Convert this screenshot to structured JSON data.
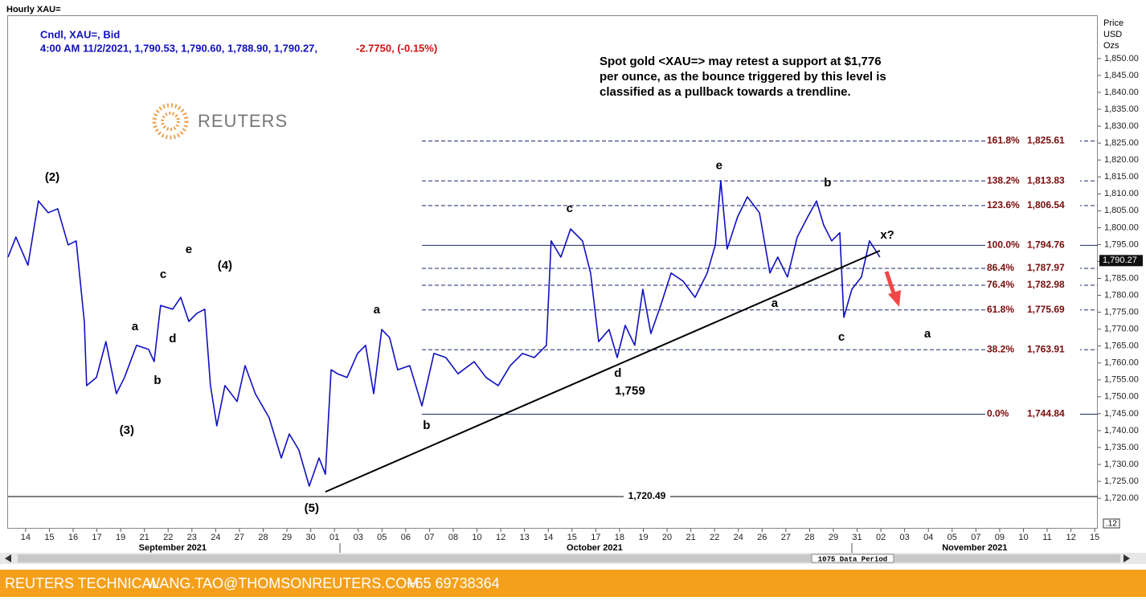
{
  "header": "Hourly XAU=",
  "footer": {
    "name": "REUTERS TECHNICAL",
    "email": "WANG.TAO@THOMSONREUTERS.COM",
    "phone": "+65 69738364"
  },
  "data_period": "1075 Data Period",
  "chart_data": {
    "type": "line",
    "legend_line1": "Cndl, XAU=, Bid",
    "legend_line2": "4:00 AM 11/2/2021, 1,790.53, 1,790.60, 1,788.90, 1,790.27,",
    "legend_change": "-2.7750, (-0.15%)",
    "logo": "REUTERS",
    "annotation": [
      "Spot gold <XAU=> may retest a support at $1,776",
      "per ounce, as the bounce triggered by this level is",
      "classified as a pullback towards a trendline."
    ],
    "y_axis_title": [
      "Price",
      "USD",
      "Ozs"
    ],
    "axis_corner": ".12",
    "color": "#1010c0",
    "xlim": [
      -0.74,
      45.13
    ],
    "ylim": [
      1711.0,
      1862.8
    ],
    "xticks": [
      {
        "value": 0,
        "label": "14"
      },
      {
        "value": 1,
        "label": "15"
      },
      {
        "value": 2,
        "label": "16"
      },
      {
        "value": 3,
        "label": "17"
      },
      {
        "value": 4,
        "label": "19"
      },
      {
        "value": 5,
        "label": "21"
      },
      {
        "value": 6,
        "label": "22"
      },
      {
        "value": 7,
        "label": "23"
      },
      {
        "value": 8,
        "label": "24"
      },
      {
        "value": 9,
        "label": "27"
      },
      {
        "value": 10,
        "label": "28"
      },
      {
        "value": 11,
        "label": "29"
      },
      {
        "value": 12,
        "label": "30"
      },
      {
        "value": 13,
        "label": "01"
      },
      {
        "value": 14,
        "label": "03"
      },
      {
        "value": 15,
        "label": "05"
      },
      {
        "value": 16,
        "label": "06"
      },
      {
        "value": 17,
        "label": "07"
      },
      {
        "value": 18,
        "label": "08"
      },
      {
        "value": 19,
        "label": "10"
      },
      {
        "value": 20,
        "label": "12"
      },
      {
        "value": 21,
        "label": "13"
      },
      {
        "value": 22,
        "label": "14"
      },
      {
        "value": 23,
        "label": "15"
      },
      {
        "value": 24,
        "label": "17"
      },
      {
        "value": 25,
        "label": "18"
      },
      {
        "value": 26,
        "label": "19"
      },
      {
        "value": 27,
        "label": "20"
      },
      {
        "value": 28,
        "label": "21"
      },
      {
        "value": 29,
        "label": "22"
      },
      {
        "value": 30,
        "label": "24"
      },
      {
        "value": 31,
        "label": "26"
      },
      {
        "value": 32,
        "label": "27"
      },
      {
        "value": 33,
        "label": "28"
      },
      {
        "value": 34,
        "label": "29"
      },
      {
        "value": 35,
        "label": "31"
      },
      {
        "value": 36,
        "label": "02"
      },
      {
        "value": 37,
        "label": "03"
      },
      {
        "value": 38,
        "label": "04"
      },
      {
        "value": 39,
        "label": "05"
      },
      {
        "value": 40,
        "label": "07"
      },
      {
        "value": 41,
        "label": "09"
      },
      {
        "value": 42,
        "label": "10"
      },
      {
        "value": 43,
        "label": "11"
      },
      {
        "value": 44,
        "label": "12"
      },
      {
        "value": 45,
        "label": "15"
      }
    ],
    "months": [
      {
        "label": "September 2021",
        "x": 6.19
      },
      {
        "label": "October 2021",
        "x": 23.95
      },
      {
        "label": "November 2021",
        "x": 39.95
      }
    ],
    "yticks": [
      {
        "value": 1720,
        "label": "1,720.00"
      },
      {
        "value": 1725,
        "label": "1,725.00"
      },
      {
        "value": 1730,
        "label": "1,730.00"
      },
      {
        "value": 1735,
        "label": "1,735.00"
      },
      {
        "value": 1740,
        "label": "1,740.00"
      },
      {
        "value": 1745,
        "label": "1,745.00"
      },
      {
        "value": 1750,
        "label": "1,750.00"
      },
      {
        "value": 1755,
        "label": "1,755.00"
      },
      {
        "value": 1760,
        "label": "1,760.00"
      },
      {
        "value": 1765,
        "label": "1,765.00"
      },
      {
        "value": 1770,
        "label": "1,770.00"
      },
      {
        "value": 1775,
        "label": "1,775.00"
      },
      {
        "value": 1780,
        "label": "1,780.00"
      },
      {
        "value": 1785,
        "label": "1,785.00"
      },
      {
        "value": 1790,
        "label": "1,790.00"
      },
      {
        "value": 1795,
        "label": "1,795.00"
      },
      {
        "value": 1800,
        "label": "1,800.00"
      },
      {
        "value": 1805,
        "label": "1,805.00"
      },
      {
        "value": 1810,
        "label": "1,810.00"
      },
      {
        "value": 1815,
        "label": "1,815.00"
      },
      {
        "value": 1820,
        "label": "1,820.00"
      },
      {
        "value": 1825,
        "label": "1,825.00"
      },
      {
        "value": 1830,
        "label": "1,830.00"
      },
      {
        "value": 1835,
        "label": "1,835.00"
      },
      {
        "value": 1840,
        "label": "1,840.00"
      },
      {
        "value": 1845,
        "label": "1,845.00"
      },
      {
        "value": 1850,
        "label": "1,850.00"
      }
    ],
    "series": [
      {
        "name": "XAU=",
        "x": [
          -0.74,
          -0.41,
          0.1,
          0.54,
          0.95,
          1.35,
          1.79,
          2.13,
          2.47,
          2.57,
          2.98,
          3.38,
          3.82,
          4.16,
          4.67,
          5.18,
          5.41,
          5.68,
          6.19,
          6.53,
          6.87,
          7.21,
          7.54,
          7.78,
          8.05,
          8.39,
          8.9,
          9.24,
          9.67,
          10.25,
          10.76,
          11.1,
          11.5,
          11.94,
          12.35,
          12.62,
          12.86,
          13.13,
          13.53,
          13.97,
          14.31,
          14.65,
          14.99,
          15.32,
          15.66,
          16.17,
          16.68,
          17.19,
          17.69,
          18.2,
          18.88,
          19.38,
          19.89,
          20.4,
          20.91,
          21.41,
          21.92,
          22.12,
          22.53,
          22.94,
          23.44,
          23.78,
          24.12,
          24.56,
          24.9,
          25.24,
          25.64,
          25.98,
          26.32,
          26.73,
          27.17,
          27.67,
          28.18,
          28.69,
          29.03,
          29.26,
          29.53,
          29.97,
          30.38,
          30.89,
          31.33,
          31.66,
          32.07,
          32.48,
          32.92,
          33.29,
          33.59,
          33.93,
          34.27,
          34.44,
          34.78,
          35.18,
          35.52,
          35.96
        ],
        "values": [
          1791.3,
          1797.2,
          1788.9,
          1807.9,
          1804.4,
          1805.6,
          1794.9,
          1796.1,
          1772.3,
          1753.3,
          1755.7,
          1766.3,
          1750.9,
          1755.7,
          1765.2,
          1764.0,
          1760.4,
          1777.0,
          1775.9,
          1779.4,
          1772.3,
          1774.7,
          1775.9,
          1753.3,
          1741.4,
          1753.3,
          1748.6,
          1759.2,
          1750.9,
          1743.8,
          1731.9,
          1739.0,
          1734.3,
          1723.6,
          1731.9,
          1727.1,
          1758.0,
          1756.8,
          1755.7,
          1762.8,
          1765.2,
          1750.9,
          1769.9,
          1767.5,
          1758.0,
          1759.2,
          1747.3,
          1762.8,
          1761.6,
          1756.8,
          1760.4,
          1755.7,
          1753.3,
          1759.2,
          1762.8,
          1761.6,
          1765.2,
          1796.1,
          1791.3,
          1799.6,
          1796.1,
          1786.6,
          1766.3,
          1769.9,
          1761.6,
          1771.1,
          1765.2,
          1781.8,
          1768.7,
          1777.0,
          1786.6,
          1784.2,
          1779.4,
          1786.6,
          1794.9,
          1813.9,
          1793.7,
          1803.2,
          1809.1,
          1804.4,
          1786.6,
          1791.3,
          1785.4,
          1797.2,
          1803.2,
          1807.9,
          1800.8,
          1796.1,
          1798.5,
          1773.5,
          1781.8,
          1785.4,
          1796.1,
          1791.3
        ]
      }
    ],
    "last_price": {
      "value": 1790.27,
      "label": "1,790.27"
    },
    "levels": [
      {
        "label": "161.8%",
        "value": 1825.61,
        "value_label": "1,825.61",
        "dashed": true
      },
      {
        "label": "138.2%",
        "value": 1813.83,
        "value_label": "1,813.83",
        "dashed": true
      },
      {
        "label": "123.6%",
        "value": 1806.54,
        "value_label": "1,806.54",
        "dashed": true
      },
      {
        "label": "100.0%",
        "value": 1794.76,
        "value_label": "1,794.76",
        "dashed": false
      },
      {
        "label": "86.4%",
        "value": 1787.97,
        "value_label": "1,787.97",
        "dashed": true
      },
      {
        "label": "76.4%",
        "value": 1782.98,
        "value_label": "1,782.98",
        "dashed": true
      },
      {
        "label": "61.8%",
        "value": 1775.69,
        "value_label": "1,775.69",
        "dashed": true
      },
      {
        "label": "38.2%",
        "value": 1763.91,
        "value_label": "1,763.91",
        "dashed": true
      },
      {
        "label": "0.0%",
        "value": 1744.84,
        "value_label": "1,744.84",
        "dashed": false
      }
    ],
    "low_level": {
      "value": 1720.49,
      "label": "1,720.49"
    },
    "trendline": {
      "x": [
        12.62,
        35.96
      ],
      "y": [
        1721.9,
        1793.2
      ]
    },
    "wave_labels": [
      {
        "text": "(2)",
        "x": 1.12,
        "y": 1814.8
      },
      {
        "text": "(3)",
        "x": 4.26,
        "y": 1740.0
      },
      {
        "text": "(4)",
        "x": 8.39,
        "y": 1788.7
      },
      {
        "text": "a",
        "x": 4.6,
        "y": 1770.6
      },
      {
        "text": "b",
        "x": 5.55,
        "y": 1754.7
      },
      {
        "text": "c",
        "x": 5.79,
        "y": 1786.1
      },
      {
        "text": "d",
        "x": 6.19,
        "y": 1767.1
      },
      {
        "text": "e",
        "x": 6.87,
        "y": 1793.4
      },
      {
        "text": "(5)",
        "x": 12.04,
        "y": 1716.9
      },
      {
        "text": "a",
        "x": 14.78,
        "y": 1775.6
      },
      {
        "text": "b",
        "x": 16.88,
        "y": 1741.4
      },
      {
        "text": "c",
        "x": 22.9,
        "y": 1805.6
      },
      {
        "text": "d",
        "x": 24.93,
        "y": 1756.8
      },
      {
        "text": "1,759",
        "x": 25.44,
        "y": 1751.6
      },
      {
        "text": "e",
        "x": 29.19,
        "y": 1818.2
      },
      {
        "text": "a",
        "x": 31.53,
        "y": 1777.5
      },
      {
        "text": "b",
        "x": 33.76,
        "y": 1813.2
      },
      {
        "text": "c",
        "x": 34.34,
        "y": 1767.5
      },
      {
        "text": "x?",
        "x": 36.27,
        "y": 1797.7
      },
      {
        "text": "a",
        "x": 37.96,
        "y": 1768.5
      }
    ]
  }
}
